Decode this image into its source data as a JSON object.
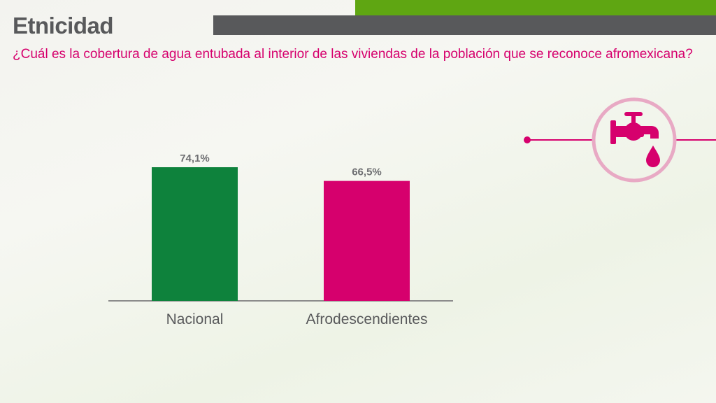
{
  "header": {
    "title": "Etnicidad",
    "question": "¿Cuál es la cobertura de agua entubada al interior de las viviendas de la población que se reconoce afromexicana?"
  },
  "colors": {
    "accent_green": "#5fa612",
    "bar_green": "#0e823c",
    "brand_magenta": "#d6006d",
    "header_gray": "#58595b",
    "icon_pink": "#e8a9c4"
  },
  "icons": [
    "faucet-icon",
    "water-drop-icon"
  ],
  "chart_data": {
    "type": "bar",
    "categories": [
      "Nacional",
      "Afrodescendientes"
    ],
    "values": [
      74.1,
      66.5
    ],
    "value_labels": [
      "74,1%",
      "66,5%"
    ],
    "bar_colors": [
      "#0e823c",
      "#d6006d"
    ],
    "ylim": [
      0,
      100
    ],
    "grid": false,
    "legend": false
  }
}
